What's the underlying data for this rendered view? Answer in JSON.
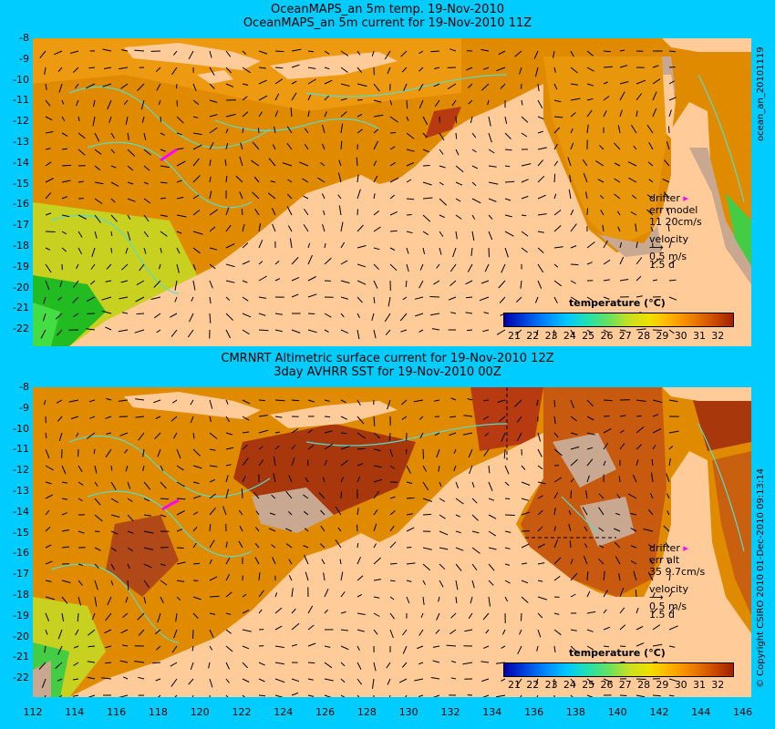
{
  "top_panel": {
    "title_line1": "OceanMAPS_an 5m temp. 19-Nov-2010",
    "title_line2": "OceanMAPS_an 5m current for 19-Nov-2010 11Z",
    "side_label": "ocean_an_20101119",
    "legend": {
      "drifter": "drifter",
      "err_label": "err model",
      "err_values": "11  20cm/s",
      "velocity": "velocity",
      "velocity_scale": "0.5 m/s",
      "velocity_days": "1.5 d"
    },
    "colorbar_title": "temperature (°C)"
  },
  "bottom_panel": {
    "title_line1": "CMRNRT Altimetric surface current for 19-Nov-2010 12Z",
    "title_line2": "3day AVHRR SST for 19-Nov-2010 00Z",
    "side_label": "© Copyright CSIRO 2010   01-Dec-2010 09:13:14",
    "legend": {
      "drifter": "drifter",
      "err_label": "err alt",
      "err_values": "35  9.7cm/s",
      "velocity": "velocity",
      "velocity_scale": "0.5 m/s",
      "velocity_days": "1.5 d"
    },
    "colorbar_title": "temperature (°C)"
  },
  "y_ticks": [
    "-8",
    "-9",
    "-10",
    "-11",
    "-12",
    "-13",
    "-14",
    "-15",
    "-16",
    "-17",
    "-18",
    "-19",
    "-20",
    "-21",
    "-22"
  ],
  "x_ticks": [
    "112",
    "114",
    "116",
    "118",
    "120",
    "122",
    "124",
    "126",
    "128",
    "130",
    "132",
    "134",
    "136",
    "138",
    "140",
    "142",
    "144",
    "146"
  ],
  "colorbar_ticks": [
    "21",
    "22",
    "23",
    "24",
    "25",
    "26",
    "27",
    "28",
    "29",
    "30",
    "31",
    "32"
  ],
  "colors": {
    "background": "#00ccff",
    "land": "#ffcc99",
    "ocean_warm": "#e08a00",
    "ocean_hot": "#b83a10",
    "ocean_cool": "#c8e020",
    "ocean_cold": "#22bb22",
    "contour": "#55ddcc",
    "drifter": "#ff00ff"
  }
}
